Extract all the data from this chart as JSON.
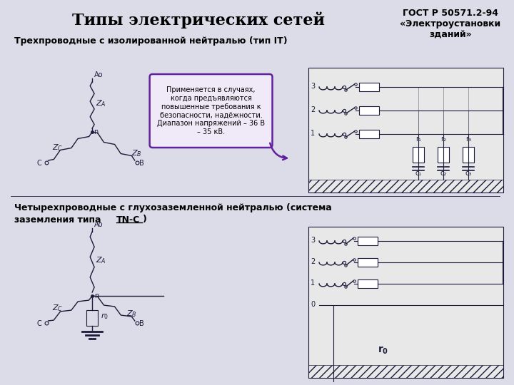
{
  "bg_color": "#dcdce8",
  "title": "Типы электрических сетей",
  "subtitle1": "Трехпроводные с изолированной нейтралью (тип IT)",
  "subtitle2_line1": "Четырехпроводные с глухозаземленной нейтралью (система",
  "subtitle2_line2": "заземления типа TN-C)",
  "gost_line1": "ГОСТ Р 50571.2-94",
  "gost_line2": "«Электроустановки",
  "gost_line3": "зданий»",
  "note_text": "Применяется в случаях,\nкогда предъявляются\nповышенные требования к\nбезопасности, надёжности.\nДиапазон напряжений – 36 В\n– 35 кВ.",
  "note_border": "#6020a0",
  "lc": "#1a1a3a",
  "ground_color": "#888888"
}
